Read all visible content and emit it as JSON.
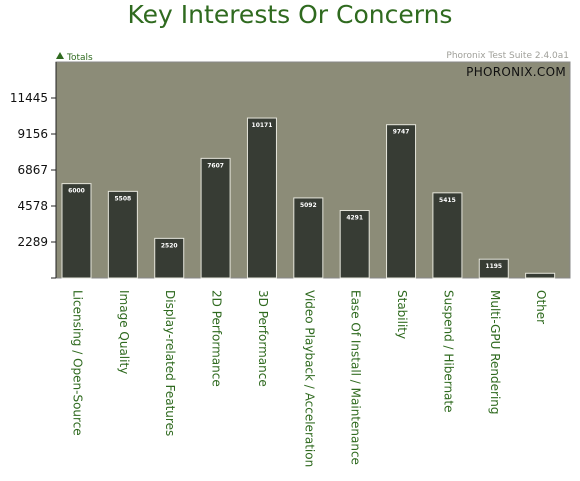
{
  "chart_data": {
    "type": "bar",
    "title": "Key Interests Or Concerns",
    "legend": {
      "position": "top-left",
      "entries": [
        "Totals"
      ]
    },
    "credit": "Phoronix Test Suite 2.4.0a1",
    "watermark": "PHORONIX.COM",
    "xlabel": "",
    "ylabel": "",
    "ylim": [
      0,
      13734
    ],
    "yticks": [
      0,
      2289,
      4578,
      6867,
      9156,
      11445
    ],
    "ytick_labels": [
      "",
      "2289",
      "4578",
      "6867",
      "9156",
      "11445"
    ],
    "grid": false,
    "categories": [
      "Licensing / Open-Source",
      "Image Quality",
      "Display-related Features",
      "2D Performance",
      "3D Performance",
      "Video Playback / Acceleration",
      "Ease Of Install / Maintenance",
      "Stability",
      "Suspend / Hibernate",
      "Multi-GPU Rendering",
      "Other"
    ],
    "series": [
      {
        "name": "Totals",
        "values": [
          6000,
          5508,
          2520,
          7607,
          10171,
          5092,
          4291,
          9747,
          5415,
          1195,
          300
        ],
        "value_labels": [
          "6000",
          "5508",
          "2520",
          "7607",
          "10171",
          "5092",
          "4291",
          "9747",
          "5415",
          "1195",
          ""
        ]
      }
    ],
    "colors": {
      "plot_bg": "#8c8c78",
      "bar": "#373c34",
      "bar_border": "#e6e6dc",
      "title": "#2f6a1f",
      "category_text": "#2f6a1f",
      "legend_marker": "#2f6a1f"
    }
  }
}
